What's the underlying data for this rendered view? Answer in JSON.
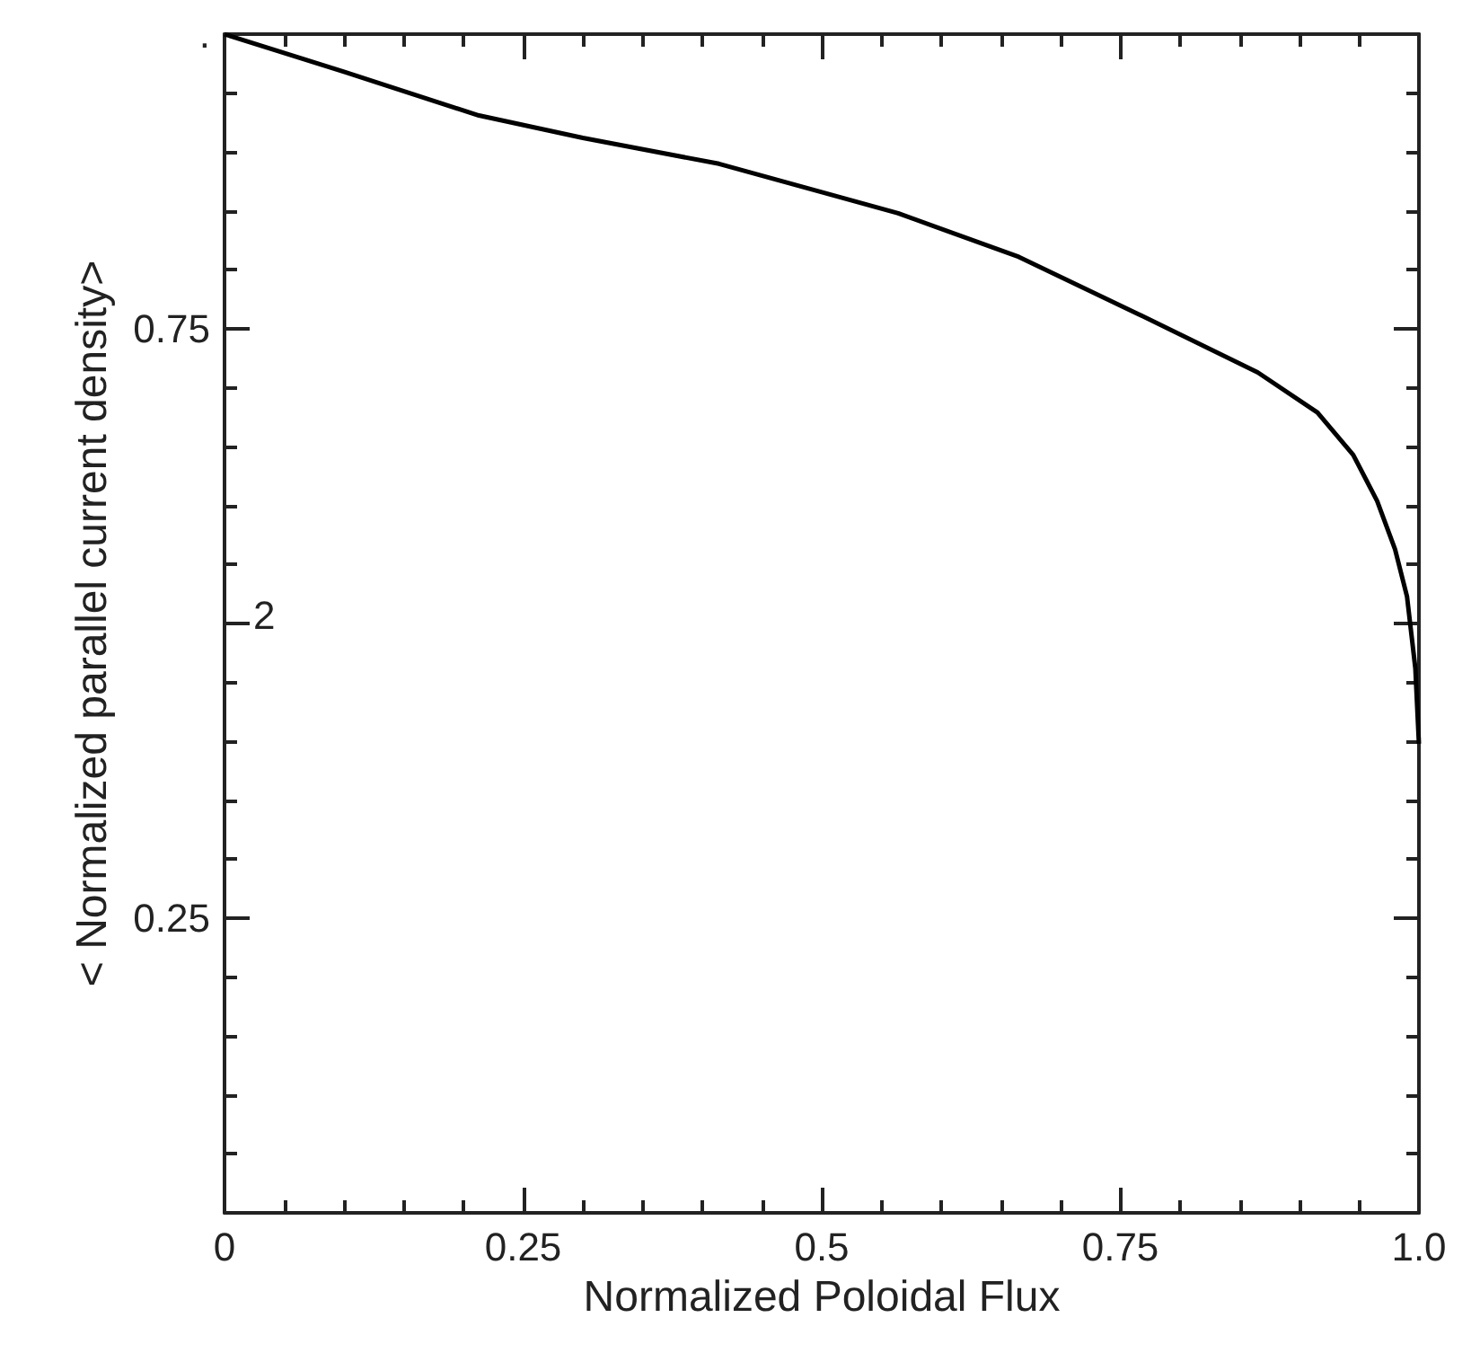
{
  "chart_data": {
    "type": "line",
    "xlabel": "Normalized Poloidal Flux",
    "ylabel": "< Normalized parallel current density>",
    "xlim": [
      0,
      1
    ],
    "ylim": [
      0,
      1
    ],
    "xticks": [
      0,
      0.25,
      0.5,
      {
        "value": 1,
        "label": "1.0"
      },
      0.75
    ],
    "yticks": [
      0.25,
      {
        "value": 0.5,
        "label": null
      },
      0.75,
      {
        "value": 1,
        "label": "."
      }
    ],
    "annotations": [
      "2"
    ],
    "grid": false,
    "marker": "none",
    "line_style": "solid",
    "series": [
      {
        "color": "#000000",
        "x": [
          0,
          0.1,
          0.213,
          0.3,
          0.414,
          0.5,
          0.564,
          0.665,
          0.764,
          0.865,
          0.915,
          0.945,
          0.965,
          0.98,
          0.99,
          0.997,
          1.0
        ],
        "values": [
          1.0,
          0.968,
          0.931,
          0.912,
          0.89,
          0.866,
          0.848,
          0.811,
          0.763,
          0.713,
          0.679,
          0.643,
          0.604,
          0.563,
          0.523,
          0.462,
          0.398
        ]
      }
    ]
  }
}
